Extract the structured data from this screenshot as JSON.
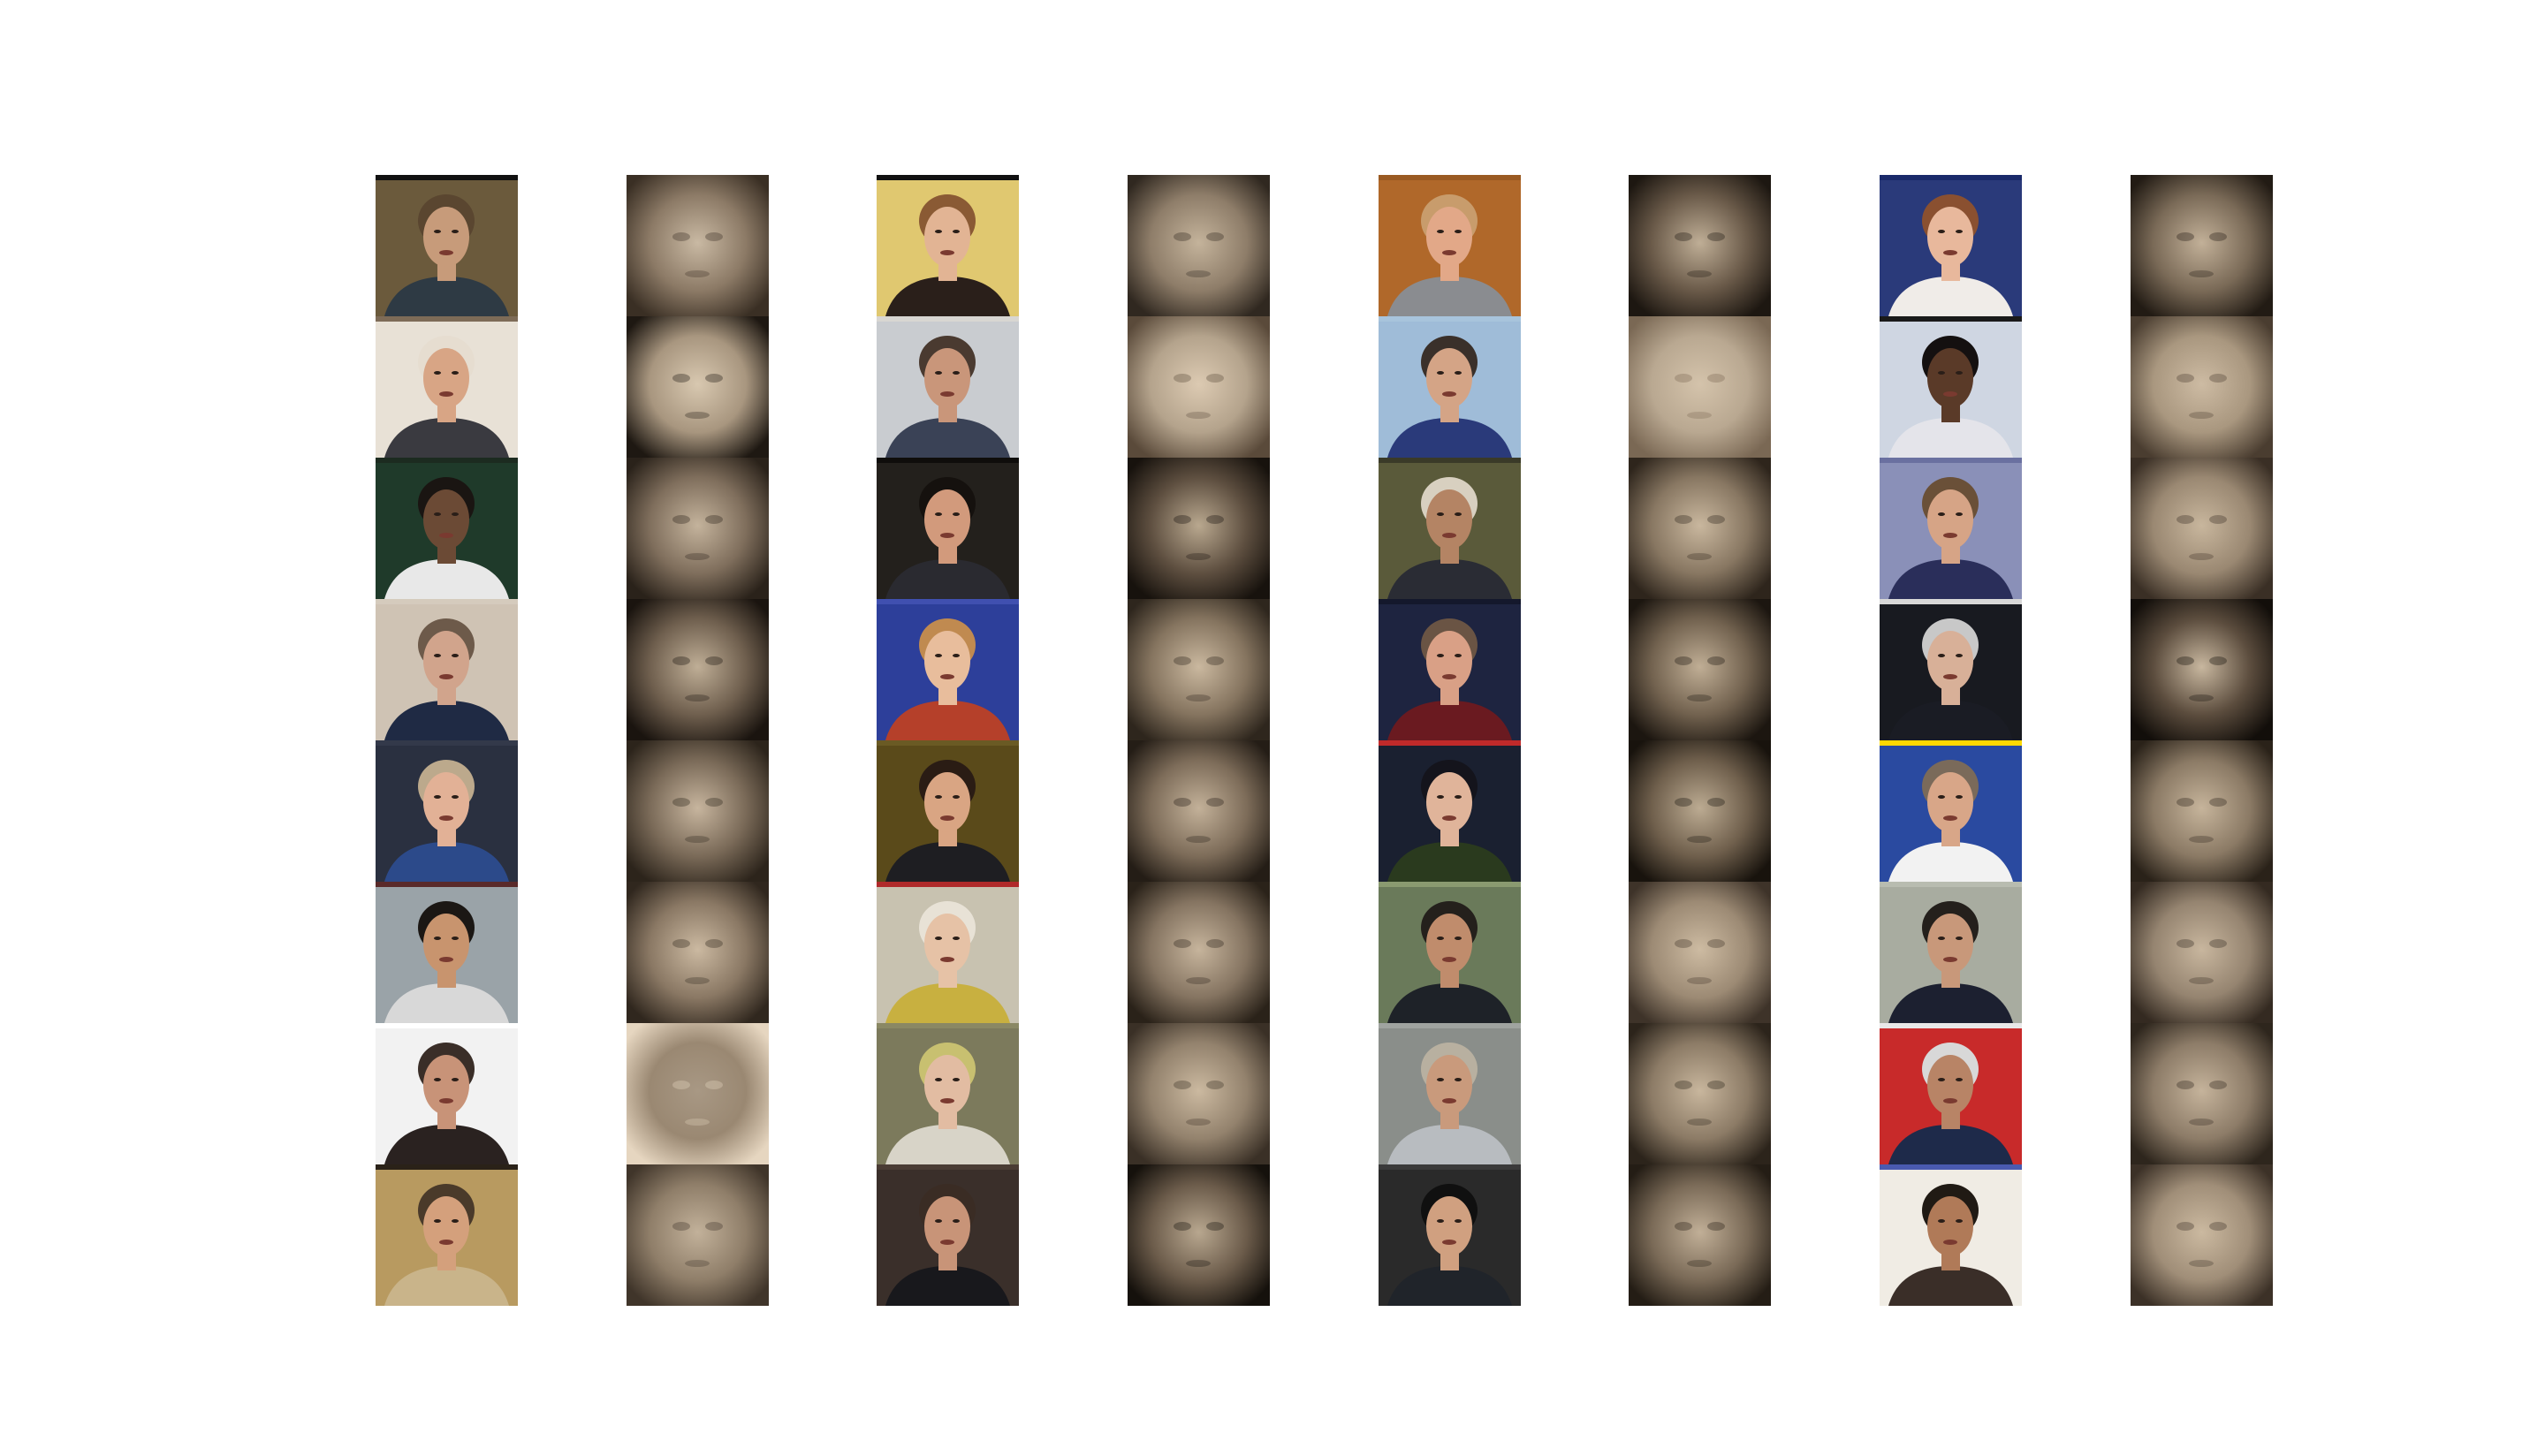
{
  "figure": {
    "columns": [
      {
        "kind": "original-photo",
        "tiles": [
          {
            "bg": "#6b5a3c",
            "skin": "#c79b7a",
            "hair": "#5a4630",
            "suit": "#2e3a44",
            "frame_top": "#111111"
          },
          {
            "bg": "#e8e1d6",
            "skin": "#d8a585",
            "hair": "#e6ddd0",
            "suit": "#3a3a40",
            "frame_top": "#7d6b57"
          },
          {
            "bg": "#1f3a2a",
            "skin": "#6b4a35",
            "hair": "#1a1512",
            "suit": "#e8e8e8",
            "frame_top": "#1c2b20"
          },
          {
            "bg": "#cfc3b4",
            "skin": "#d1a48c",
            "hair": "#6d5a4a",
            "suit": "#1f2a44",
            "frame_top": "#d5cbbd"
          },
          {
            "bg": "#2a3040",
            "skin": "#e2b196",
            "hair": "#bca98c",
            "suit": "#2c4a8a",
            "frame_top": "#33394a"
          },
          {
            "bg": "#9aa3a8",
            "skin": "#c8946e",
            "hair": "#1b1714",
            "suit": "#d8d8d8",
            "frame_top": "#5a2a2a"
          },
          {
            "bg": "#f2f2f2",
            "skin": "#c89378",
            "hair": "#3a2e28",
            "suit": "#2a2220",
            "frame_top": "#ffffff"
          },
          {
            "bg": "#b89a60",
            "skin": "#d4a07c",
            "hair": "#4a3a2a",
            "suit": "#c9b48a",
            "frame_top": "#2a2218"
          }
        ]
      },
      {
        "kind": "reconstruction",
        "tiles": [
          {
            "bg": "#8c7a66",
            "face": "#c9b9a3",
            "edge": "#3a2f24"
          },
          {
            "bg": "#a8967f",
            "face": "#d8c8b0",
            "edge": "#1e1812"
          },
          {
            "bg": "#7f6e5c",
            "face": "#c4b39c",
            "edge": "#2a221a"
          },
          {
            "bg": "#6f5f4e",
            "face": "#bfae96",
            "edge": "#1a140f"
          },
          {
            "bg": "#7a6a58",
            "face": "#c7b59e",
            "edge": "#2c241b"
          },
          {
            "bg": "#8a7864",
            "face": "#cbb9a1",
            "edge": "#30271e"
          },
          {
            "bg": "#9a8872",
            "face": "#a89884",
            "edge": "#e6d6c0"
          },
          {
            "bg": "#8f7e69",
            "face": "#c2b19a",
            "edge": "#40352a"
          }
        ]
      },
      {
        "kind": "original-photo",
        "tiles": [
          {
            "bg": "#e0c870",
            "skin": "#e2b494",
            "hair": "#8a5a34",
            "suit": "#2a1f1a",
            "frame_top": "#111111"
          },
          {
            "bg": "#c9ccd0",
            "skin": "#c9967a",
            "hair": "#4a3a30",
            "suit": "#3a4256",
            "frame_top": "#d8d6d2"
          },
          {
            "bg": "#23201c",
            "skin": "#d29a7c",
            "hair": "#15110e",
            "suit": "#2a2a30",
            "frame_top": "#0f0d0b"
          },
          {
            "bg": "#2d3f9a",
            "skin": "#e8bd9c",
            "hair": "#c08a50",
            "suit": "#b5402a",
            "frame_top": "#4050b0"
          },
          {
            "bg": "#5a4a1a",
            "skin": "#d9a583",
            "hair": "#2a1c14",
            "suit": "#1e1e22",
            "frame_top": "#6a5a24"
          },
          {
            "bg": "#c8c2b0",
            "skin": "#e6c2a6",
            "hair": "#e8e2d6",
            "suit": "#c8b040",
            "frame_top": "#b02a2a"
          },
          {
            "bg": "#7c7a5c",
            "skin": "#e2bca2",
            "hair": "#c8c070",
            "suit": "#d8d4c8",
            "frame_top": "#8a8864"
          },
          {
            "bg": "#3a2f2a",
            "skin": "#c89478",
            "hair": "#3a2c24",
            "suit": "#18181c",
            "frame_top": "#4a3c34"
          }
        ]
      },
      {
        "kind": "reconstruction",
        "tiles": [
          {
            "bg": "#8e7d69",
            "face": "#c4b39b",
            "edge": "#302820"
          },
          {
            "bg": "#b4a38c",
            "face": "#dccab2",
            "edge": "#5a4a3a"
          },
          {
            "bg": "#5e4f40",
            "face": "#b9a88f",
            "edge": "#17120d"
          },
          {
            "bg": "#85745f",
            "face": "#cab89f",
            "edge": "#2e261d"
          },
          {
            "bg": "#7d6c59",
            "face": "#c3b199",
            "edge": "#241d16"
          },
          {
            "bg": "#857461",
            "face": "#c6b49c",
            "edge": "#2a2219"
          },
          {
            "bg": "#93826d",
            "face": "#cbb9a0",
            "edge": "#3a3026"
          },
          {
            "bg": "#6b5b4a",
            "face": "#b8a78f",
            "edge": "#15110c"
          }
        ]
      },
      {
        "kind": "original-photo",
        "tiles": [
          {
            "bg": "#b0682a",
            "skin": "#e2a888",
            "hair": "#c89c6c",
            "suit": "#8a8c90",
            "frame_top": "#9a5a22"
          },
          {
            "bg": "#9fbcd8",
            "skin": "#d4a486",
            "hair": "#3a302a",
            "suit": "#2a3a7a",
            "frame_top": "#a8c4dc"
          },
          {
            "bg": "#5a5a3a",
            "skin": "#b48464",
            "hair": "#d8d0c0",
            "suit": "#2a2c34",
            "frame_top": "#3a3a28"
          },
          {
            "bg": "#1e2440",
            "skin": "#d9a086",
            "hair": "#6a5444",
            "suit": "#6a1a20",
            "frame_top": "#14182c"
          },
          {
            "bg": "#1a2030",
            "skin": "#e0b49a",
            "hair": "#14141c",
            "suit": "#2a3a1e",
            "frame_top": "#c02a2a"
          },
          {
            "bg": "#6a7a5a",
            "skin": "#c08c6c",
            "hair": "#24201c",
            "suit": "#1e2228",
            "frame_top": "#8a9a70"
          },
          {
            "bg": "#8a8e8a",
            "skin": "#c99a7c",
            "hair": "#b8b0a0",
            "suit": "#b8bcc0",
            "frame_top": "#a0a4a0"
          },
          {
            "bg": "#2a2a2a",
            "skin": "#d0a080",
            "hair": "#101010",
            "suit": "#20242a",
            "frame_top": "#3a3a3a"
          }
        ]
      },
      {
        "kind": "reconstruction",
        "tiles": [
          {
            "bg": "#6a5a49",
            "face": "#bfae96",
            "edge": "#1d1711"
          },
          {
            "bg": "#b9a891",
            "face": "#d4c3ab",
            "edge": "#7a6854"
          },
          {
            "bg": "#887762",
            "face": "#c9b79e",
            "edge": "#2e251c"
          },
          {
            "bg": "#72624f",
            "face": "#c0ae95",
            "edge": "#1c1610"
          },
          {
            "bg": "#6f5f4c",
            "face": "#bcab92",
            "edge": "#18130d"
          },
          {
            "bg": "#9c8a74",
            "face": "#cdbba2",
            "edge": "#3e3329"
          },
          {
            "bg": "#8c7b66",
            "face": "#c8b69d",
            "edge": "#2c241b"
          },
          {
            "bg": "#7a6a57",
            "face": "#c1af97",
            "edge": "#241d15"
          }
        ]
      },
      {
        "kind": "original-photo",
        "tiles": [
          {
            "bg": "#2a3a7a",
            "skin": "#e8b89c",
            "hair": "#8a5030",
            "suit": "#f0ece8",
            "frame_top": "#1a2a6a"
          },
          {
            "bg": "#cfd6e2",
            "skin": "#5a3a28",
            "hair": "#141010",
            "suit": "#e4e4ea",
            "frame_top": "#1a1a1a"
          },
          {
            "bg": "#8a90b8",
            "skin": "#d6a486",
            "hair": "#6a5038",
            "suit": "#2a2e5a",
            "frame_top": "#6a70a0"
          },
          {
            "bg": "#181a20",
            "skin": "#d8b098",
            "hair": "#c8c8c8",
            "suit": "#1a1c24",
            "frame_top": "#d8d8d8"
          },
          {
            "bg": "#2a4aa0",
            "skin": "#d8a688",
            "hair": "#7a6a5a",
            "suit": "#f2f2f2",
            "frame_top": "#ffd800"
          },
          {
            "bg": "#a8aca0",
            "skin": "#c8987a",
            "hair": "#24201c",
            "suit": "#1c2030",
            "frame_top": "#b8bcb0"
          },
          {
            "bg": "#c82a2a",
            "skin": "#b88466",
            "hair": "#d8d8d8",
            "suit": "#1e2a4a",
            "frame_top": "#e8e8e8"
          },
          {
            "bg": "#f0ece4",
            "skin": "#b07a58",
            "hair": "#201a14",
            "suit": "#3a2e28",
            "frame_top": "#4a5ab0"
          }
        ]
      },
      {
        "kind": "reconstruction",
        "tiles": [
          {
            "bg": "#7a6a57",
            "face": "#c2b098",
            "edge": "#221b14"
          },
          {
            "bg": "#a9977f",
            "face": "#cdbba3",
            "edge": "#4a3d30"
          },
          {
            "bg": "#9a8872",
            "face": "#c8b69d",
            "edge": "#3a2f25"
          },
          {
            "bg": "#5c4d3e",
            "face": "#c8b79f",
            "edge": "#120e0a"
          },
          {
            "bg": "#8b7a65",
            "face": "#c6b49b",
            "edge": "#2a2219"
          },
          {
            "bg": "#958470",
            "face": "#c8b69e",
            "edge": "#342a21"
          },
          {
            "bg": "#8d7c68",
            "face": "#c5b39b",
            "edge": "#2e261d"
          },
          {
            "bg": "#a08e78",
            "face": "#cbb9a0",
            "edge": "#3c3127"
          }
        ]
      }
    ]
  }
}
